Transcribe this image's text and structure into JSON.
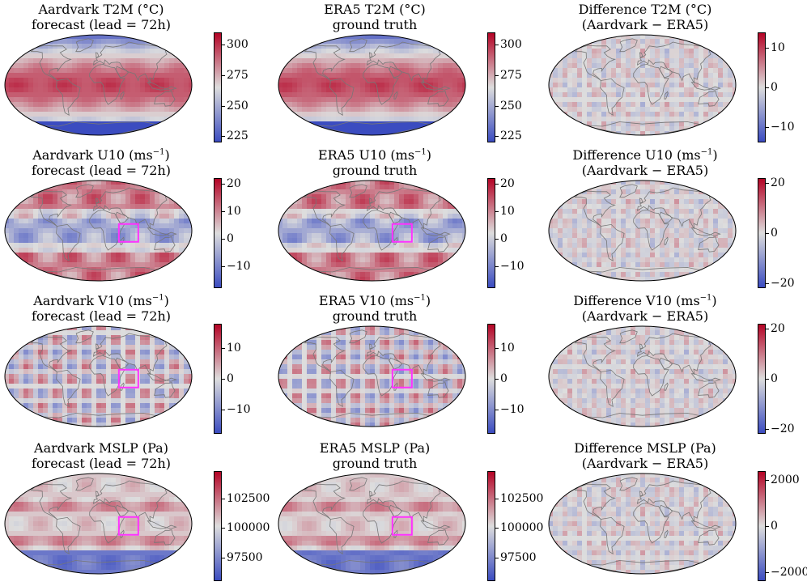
{
  "colors": {
    "cmap_low": "#3b4cc0",
    "cmap_mid": "#dddddd",
    "cmap_high": "#b40426",
    "highlight_box": "#ff33ff",
    "land_outline": "#777777"
  },
  "chart_data": [
    {
      "type": "heatmap",
      "row": 0,
      "col": 0,
      "variable": "T2M",
      "title_line1": "Aardvark T2M (°C)",
      "title_line2": "forecast (lead = 72h)",
      "colorbar": {
        "range": [
          220,
          310
        ],
        "ticks": [
          225,
          250,
          275,
          300
        ],
        "tick_labels": [
          "225",
          "250",
          "275",
          "300"
        ]
      },
      "highlight_box": false
    },
    {
      "type": "heatmap",
      "row": 0,
      "col": 1,
      "variable": "T2M",
      "title_line1": "ERA5 T2M (°C)",
      "title_line2": "ground truth",
      "colorbar": {
        "range": [
          220,
          310
        ],
        "ticks": [
          225,
          250,
          275,
          300
        ],
        "tick_labels": [
          "225",
          "250",
          "275",
          "300"
        ]
      },
      "highlight_box": false
    },
    {
      "type": "heatmap",
      "row": 0,
      "col": 2,
      "variable": "T2M",
      "title_line1": "Difference T2M (°C)",
      "title_line2": "(Aardvark − ERA5)",
      "colorbar": {
        "range": [
          -14,
          14
        ],
        "ticks": [
          -10,
          0,
          10
        ],
        "tick_labels": [
          "−10",
          "0",
          "10"
        ]
      },
      "highlight_box": false
    },
    {
      "type": "heatmap",
      "row": 1,
      "col": 0,
      "variable": "U10",
      "title_line1": "Aardvark U10 (ms",
      "title_sup": "−1",
      "title_line1_end": ")",
      "title_line2": "forecast (lead = 72h)",
      "colorbar": {
        "range": [
          -18,
          22
        ],
        "ticks": [
          -10,
          0,
          10,
          20
        ],
        "tick_labels": [
          "−10",
          "0",
          "10",
          "20"
        ]
      },
      "highlight_box": true
    },
    {
      "type": "heatmap",
      "row": 1,
      "col": 1,
      "variable": "U10",
      "title_line1": "ERA5 U10 (ms",
      "title_sup": "−1",
      "title_line1_end": ")",
      "title_line2": "ground truth",
      "colorbar": {
        "range": [
          -18,
          22
        ],
        "ticks": [
          -10,
          0,
          10,
          20
        ],
        "tick_labels": [
          "−10",
          "0",
          "10",
          "20"
        ]
      },
      "highlight_box": true
    },
    {
      "type": "heatmap",
      "row": 1,
      "col": 2,
      "variable": "U10",
      "title_line1": "Difference U10 (ms",
      "title_sup": "−1",
      "title_line1_end": ")",
      "title_line2": "(Aardvark − ERA5)",
      "colorbar": {
        "range": [
          -22,
          22
        ],
        "ticks": [
          -20,
          0,
          20
        ],
        "tick_labels": [
          "−20",
          "0",
          "20"
        ]
      },
      "highlight_box": false
    },
    {
      "type": "heatmap",
      "row": 2,
      "col": 0,
      "variable": "V10",
      "title_line1": "Aardvark V10 (ms",
      "title_sup": "−1",
      "title_line1_end": ")",
      "title_line2": "forecast (lead = 72h)",
      "colorbar": {
        "range": [
          -18,
          18
        ],
        "ticks": [
          -10,
          0,
          10
        ],
        "tick_labels": [
          "−10",
          "0",
          "10"
        ]
      },
      "highlight_box": true
    },
    {
      "type": "heatmap",
      "row": 2,
      "col": 1,
      "variable": "V10",
      "title_line1": "ERA5 V10 (ms",
      "title_sup": "−1",
      "title_line1_end": ")",
      "title_line2": "ground truth",
      "colorbar": {
        "range": [
          -18,
          18
        ],
        "ticks": [
          -10,
          0,
          10
        ],
        "tick_labels": [
          "−10",
          "0",
          "10"
        ]
      },
      "highlight_box": true
    },
    {
      "type": "heatmap",
      "row": 2,
      "col": 2,
      "variable": "V10",
      "title_line1": "Difference V10 (ms",
      "title_sup": "−1",
      "title_line1_end": ")",
      "title_line2": "(Aardvark − ERA5)",
      "colorbar": {
        "range": [
          -22,
          22
        ],
        "ticks": [
          -20,
          0,
          20
        ],
        "tick_labels": [
          "−20",
          "0",
          "20"
        ]
      },
      "highlight_box": false
    },
    {
      "type": "heatmap",
      "row": 3,
      "col": 0,
      "variable": "MSLP",
      "title_line1": "Aardvark MSLP (Pa)",
      "title_line2": "forecast (lead = 72h)",
      "colorbar": {
        "range": [
          95500,
          104800
        ],
        "ticks": [
          97500,
          100000,
          102500
        ],
        "tick_labels": [
          "97500",
          "100000",
          "102500"
        ]
      },
      "highlight_box": true
    },
    {
      "type": "heatmap",
      "row": 3,
      "col": 1,
      "variable": "MSLP",
      "title_line1": "ERA5 MSLP (Pa)",
      "title_line2": "ground truth",
      "colorbar": {
        "range": [
          95500,
          104800
        ],
        "ticks": [
          97500,
          100000,
          102500
        ],
        "tick_labels": [
          "97500",
          "100000",
          "102500"
        ]
      },
      "highlight_box": true
    },
    {
      "type": "heatmap",
      "row": 3,
      "col": 2,
      "variable": "MSLP",
      "title_line1": "Difference MSLP (Pa)",
      "title_line2": "(Aardvark − ERA5)",
      "colorbar": {
        "range": [
          -2400,
          2400
        ],
        "ticks": [
          -2000,
          0,
          2000
        ],
        "tick_labels": [
          "−2000",
          "0",
          "2000"
        ]
      },
      "highlight_box": false
    }
  ]
}
